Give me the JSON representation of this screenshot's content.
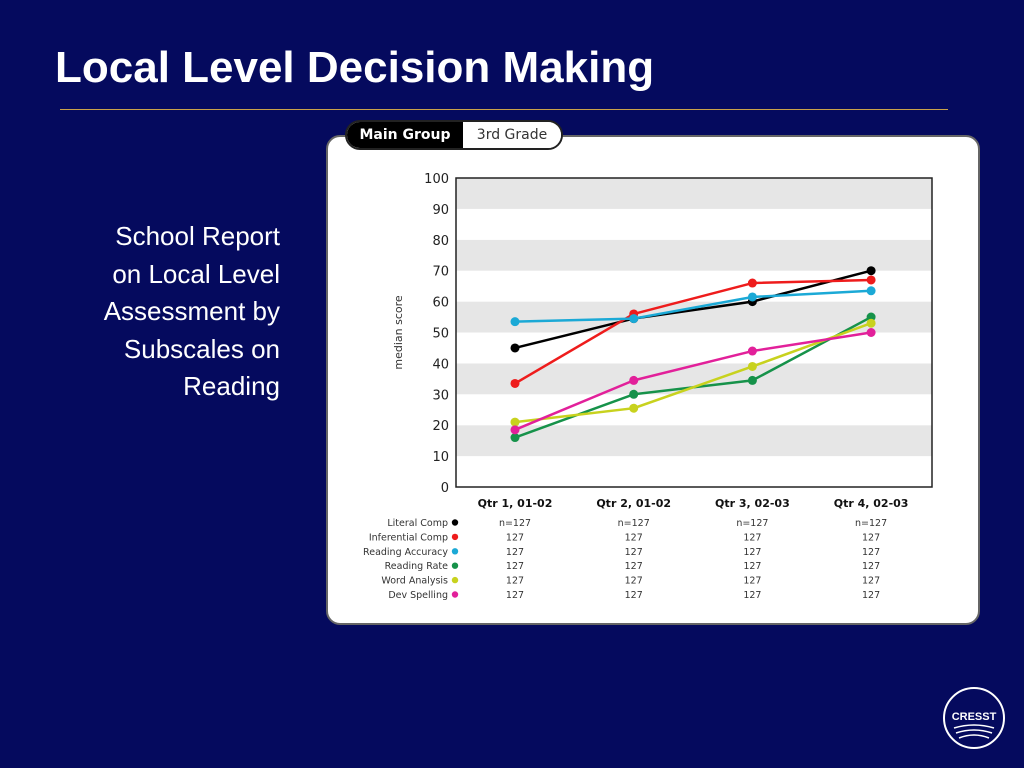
{
  "slide": {
    "title": "Local Level Decision Making",
    "caption_lines": [
      "School Report",
      "on Local Level",
      "Assessment by",
      "Subscales on",
      "Reading"
    ]
  },
  "tabs": [
    {
      "label": "Main Group",
      "active": true
    },
    {
      "label": "3rd Grade",
      "active": false
    }
  ],
  "logo": {
    "text": "CRESST"
  },
  "chart_data": {
    "type": "line",
    "title": "",
    "ylabel": "median score",
    "xlabel": "",
    "ylim": [
      0,
      100
    ],
    "yticks": [
      0,
      10,
      20,
      30,
      40,
      50,
      60,
      70,
      80,
      90,
      100
    ],
    "categories": [
      "Qtr 1, 01-02",
      "Qtr 2, 01-02",
      "Qtr 3, 02-03",
      "Qtr 4, 02-03"
    ],
    "grid": "alternating horizontal bands",
    "series": [
      {
        "name": "Literal Comp",
        "color": "#000000",
        "values": [
          45,
          54.5,
          60,
          70
        ],
        "n": [
          "n=127",
          "n=127",
          "n=127",
          "n=127"
        ]
      },
      {
        "name": "Inferential Comp",
        "color": "#ee1c1c",
        "values": [
          33.5,
          56,
          66,
          67
        ],
        "n": [
          "127",
          "127",
          "127",
          "127"
        ]
      },
      {
        "name": "Reading Accuracy",
        "color": "#1ba9d6",
        "values": [
          53.5,
          54.5,
          61.5,
          63.5
        ],
        "n": [
          "127",
          "127",
          "127",
          "127"
        ]
      },
      {
        "name": "Reading Rate",
        "color": "#16924a",
        "values": [
          16,
          30,
          34.5,
          55
        ],
        "n": [
          "127",
          "127",
          "127",
          "127"
        ]
      },
      {
        "name": "Word Analysis",
        "color": "#c8d21e",
        "values": [
          21,
          25.5,
          39,
          53
        ],
        "n": [
          "127",
          "127",
          "127",
          "127"
        ]
      },
      {
        "name": "Dev Spelling",
        "color": "#e2209a",
        "values": [
          18.5,
          34.5,
          44,
          50
        ],
        "n": [
          "127",
          "127",
          "127",
          "127"
        ]
      }
    ]
  }
}
